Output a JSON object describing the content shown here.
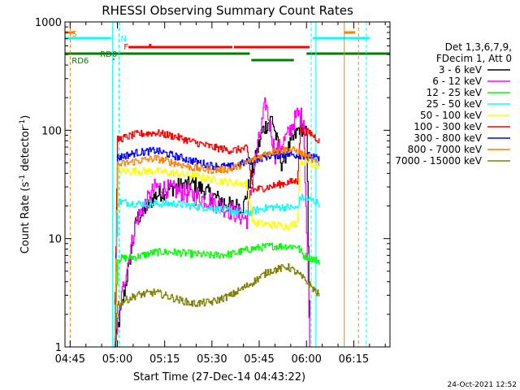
{
  "chart_data": {
    "type": "line",
    "title": "RHESSI Observing Summary Count Rates",
    "xlabel": "Start Time (27-Dec-14 04:43:22)",
    "ylabel": "Count Rate (s⁻¹ detector⁻¹)",
    "ylabel_parts": {
      "main": "Count Rate (s",
      "sup1": "-1",
      "mid": " detector",
      "sup2": "-1",
      "tail": ")"
    },
    "yscale": "log",
    "ylim": [
      1,
      1000
    ],
    "xlim": [
      "04:43:22",
      "06:26:30"
    ],
    "x_ticks": [
      "04:45",
      "05:00",
      "05:15",
      "05:30",
      "05:45",
      "06:00",
      "06:15"
    ],
    "y_ticks": [
      "1",
      "10",
      "100",
      "1000"
    ],
    "legend_header": [
      "Det 1,3,6,7,9,",
      "FDecim 1, Att 0"
    ],
    "legend_position": "right",
    "footer_date": "24-Oct-2021 12:52",
    "flags": [
      {
        "label": "S",
        "color": "#ff8000"
      },
      {
        "label": "N",
        "color": "#00ffff"
      },
      {
        "label": "F",
        "color": "#ff0000"
      },
      {
        "label": "RD0",
        "color": "#008000"
      },
      {
        "label": "RD6",
        "color": "#008000"
      }
    ],
    "series": [
      {
        "name": "3 - 6 keV",
        "color": "#000000",
        "points": [
          [
            "04:59",
            1
          ],
          [
            "05:02",
            3
          ],
          [
            "05:06",
            15
          ],
          [
            "05:12",
            25
          ],
          [
            "05:18",
            30
          ],
          [
            "05:24",
            32
          ],
          [
            "05:30",
            25
          ],
          [
            "05:36",
            20
          ],
          [
            "05:40",
            20
          ],
          [
            "05:46",
            100
          ],
          [
            "05:49",
            130
          ],
          [
            "05:52",
            50
          ],
          [
            "05:55",
            75
          ],
          [
            "05:58",
            110
          ],
          [
            "06:00",
            90
          ],
          [
            "06:01",
            1
          ]
        ]
      },
      {
        "name": "6 - 12 keV",
        "color": "#ff00ff",
        "points": [
          [
            "04:59",
            1
          ],
          [
            "05:02",
            4
          ],
          [
            "05:06",
            15
          ],
          [
            "05:12",
            30
          ],
          [
            "05:18",
            28
          ],
          [
            "05:24",
            25
          ],
          [
            "05:30",
            22
          ],
          [
            "05:36",
            18
          ],
          [
            "05:41",
            15
          ],
          [
            "05:44",
            60
          ],
          [
            "05:47",
            180
          ],
          [
            "05:50",
            60
          ],
          [
            "05:54",
            90
          ],
          [
            "05:57",
            140
          ],
          [
            "05:59",
            130
          ],
          [
            "06:01",
            1
          ]
        ]
      },
      {
        "name": "12 - 25 keV",
        "color": "#00ff00",
        "points": [
          [
            "04:59",
            1
          ],
          [
            "05:00",
            6.5
          ],
          [
            "05:06",
            6.8
          ],
          [
            "05:12",
            7.5
          ],
          [
            "05:18",
            7.5
          ],
          [
            "05:24",
            7.2
          ],
          [
            "05:30",
            7
          ],
          [
            "05:36",
            7.2
          ],
          [
            "05:42",
            8
          ],
          [
            "05:48",
            8.5
          ],
          [
            "05:54",
            8.5
          ],
          [
            "05:57",
            8.5
          ],
          [
            "05:59",
            7
          ],
          [
            "06:02",
            6.5
          ],
          [
            "06:04",
            6.2
          ]
        ]
      },
      {
        "name": "25 - 50 keV",
        "color": "#00ffff",
        "points": [
          [
            "04:59",
            1
          ],
          [
            "05:00",
            22
          ],
          [
            "05:06",
            21
          ],
          [
            "05:12",
            21
          ],
          [
            "05:18",
            21
          ],
          [
            "05:24",
            20
          ],
          [
            "05:30",
            19
          ],
          [
            "05:36",
            18
          ],
          [
            "05:41",
            17
          ],
          [
            "05:43",
            18
          ],
          [
            "05:48",
            19.5
          ],
          [
            "05:54",
            19.5
          ],
          [
            "05:57",
            19
          ],
          [
            "05:58",
            24
          ],
          [
            "06:01",
            23
          ],
          [
            "06:04",
            21
          ]
        ]
      },
      {
        "name": "50 - 100 keV",
        "color": "#ffff00",
        "points": [
          [
            "04:59",
            1
          ],
          [
            "05:00",
            42
          ],
          [
            "05:06",
            42
          ],
          [
            "05:12",
            42
          ],
          [
            "05:18",
            40
          ],
          [
            "05:24",
            38
          ],
          [
            "05:30",
            35
          ],
          [
            "05:36",
            33
          ],
          [
            "05:41",
            32
          ],
          [
            "05:43",
            14
          ],
          [
            "05:48",
            13.5
          ],
          [
            "05:54",
            13
          ],
          [
            "05:57",
            14
          ],
          [
            "05:58",
            52
          ],
          [
            "06:01",
            50
          ],
          [
            "06:04",
            46
          ]
        ]
      },
      {
        "name": "100 - 300 keV",
        "color": "#ff0000",
        "points": [
          [
            "04:59",
            1
          ],
          [
            "05:00",
            82
          ],
          [
            "05:06",
            92
          ],
          [
            "05:12",
            95
          ],
          [
            "05:18",
            88
          ],
          [
            "05:24",
            78
          ],
          [
            "05:30",
            70
          ],
          [
            "05:36",
            65
          ],
          [
            "05:41",
            68
          ],
          [
            "05:43",
            28
          ],
          [
            "05:48",
            30
          ],
          [
            "05:54",
            33
          ],
          [
            "05:57",
            34
          ],
          [
            "05:58",
            100
          ],
          [
            "06:01",
            95
          ],
          [
            "06:04",
            80
          ]
        ]
      },
      {
        "name": "300 - 800 keV",
        "color": "#0000ff",
        "points": [
          [
            "04:59",
            1
          ],
          [
            "05:00",
            56
          ],
          [
            "05:06",
            62
          ],
          [
            "05:12",
            65
          ],
          [
            "05:18",
            58
          ],
          [
            "05:24",
            52
          ],
          [
            "05:30",
            47
          ],
          [
            "05:36",
            46
          ],
          [
            "05:42",
            52
          ],
          [
            "05:48",
            58
          ],
          [
            "05:54",
            60
          ],
          [
            "05:57",
            59
          ],
          [
            "06:01",
            58
          ],
          [
            "06:04",
            54
          ]
        ]
      },
      {
        "name": "800 - 7000 keV",
        "color": "#ff8000",
        "points": [
          [
            "04:59",
            1
          ],
          [
            "05:00",
            48
          ],
          [
            "05:06",
            52
          ],
          [
            "05:12",
            55
          ],
          [
            "05:18",
            50
          ],
          [
            "05:24",
            45
          ],
          [
            "05:30",
            43
          ],
          [
            "05:36",
            44
          ],
          [
            "05:42",
            52
          ],
          [
            "05:48",
            63
          ],
          [
            "05:54",
            67
          ],
          [
            "05:57",
            64
          ],
          [
            "06:01",
            55
          ],
          [
            "06:04",
            48
          ]
        ]
      },
      {
        "name": "7000 - 15000 keV",
        "color": "#808000",
        "points": [
          [
            "04:59",
            1
          ],
          [
            "05:00",
            2.5
          ],
          [
            "05:06",
            3
          ],
          [
            "05:12",
            3.2
          ],
          [
            "05:18",
            2.8
          ],
          [
            "05:24",
            2.5
          ],
          [
            "05:30",
            2.6
          ],
          [
            "05:36",
            3
          ],
          [
            "05:42",
            3.8
          ],
          [
            "05:48",
            5
          ],
          [
            "05:54",
            5.5
          ],
          [
            "05:57",
            4.8
          ],
          [
            "06:00",
            4
          ],
          [
            "06:04",
            3
          ]
        ]
      }
    ]
  }
}
